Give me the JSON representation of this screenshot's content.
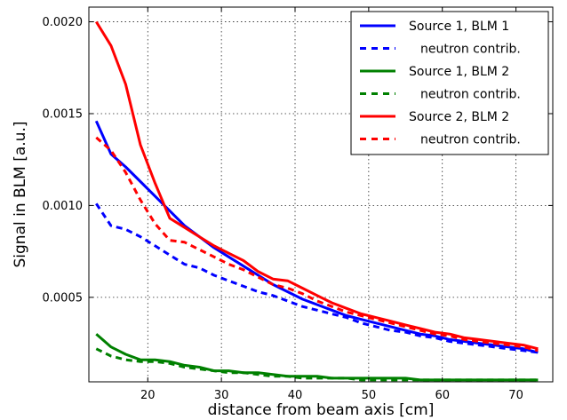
{
  "chart_data": {
    "type": "line",
    "title": "",
    "xlabel": "distance from beam axis [cm]",
    "ylabel": "Signal in BLM [a.u.]",
    "xlim": [
      12,
      75
    ],
    "ylim": [
      4e-05,
      0.00208
    ],
    "xticks": [
      {
        "value": 20,
        "label": "20"
      },
      {
        "value": 30,
        "label": "30"
      },
      {
        "value": 40,
        "label": "40"
      },
      {
        "value": 50,
        "label": "50"
      },
      {
        "value": 60,
        "label": "60"
      },
      {
        "value": 70,
        "label": "70"
      }
    ],
    "yticks": [
      {
        "value": 0.0005,
        "label": "0.0005"
      },
      {
        "value": 0.001,
        "label": "0.0010"
      },
      {
        "value": 0.0015,
        "label": "0.0015"
      },
      {
        "value": 0.002,
        "label": "0.0020"
      }
    ],
    "grid": true,
    "legend_position": "top-right",
    "series": [
      {
        "name": "Source 1, BLM 1",
        "color": "#0000ff",
        "style": "solid",
        "x": [
          13,
          15,
          17,
          19,
          21,
          23,
          25,
          27,
          29,
          31,
          33,
          35,
          37,
          39,
          41,
          43,
          45,
          47,
          49,
          51,
          53,
          55,
          57,
          59,
          61,
          63,
          65,
          67,
          69,
          71,
          73
        ],
        "y": [
          0.00146,
          0.00128,
          0.00121,
          0.00113,
          0.00105,
          0.00097,
          0.00089,
          0.00083,
          0.00077,
          0.00072,
          0.00067,
          0.00062,
          0.00057,
          0.00053,
          0.00049,
          0.00046,
          0.00043,
          0.0004,
          0.00038,
          0.00036,
          0.00034,
          0.00032,
          0.0003,
          0.00029,
          0.00027,
          0.00026,
          0.00025,
          0.00024,
          0.00023,
          0.00022,
          0.0002
        ]
      },
      {
        "name": "neutron contrib.",
        "color": "#0000ff",
        "style": "dashed",
        "x": [
          13,
          15,
          17,
          19,
          21,
          23,
          25,
          27,
          29,
          31,
          33,
          35,
          37,
          39,
          41,
          43,
          45,
          47,
          49,
          51,
          53,
          55,
          57,
          59,
          61,
          63,
          65,
          67,
          69,
          71,
          73
        ],
        "y": [
          0.00101,
          0.00089,
          0.00087,
          0.00083,
          0.00078,
          0.00073,
          0.00068,
          0.00066,
          0.00062,
          0.00059,
          0.00056,
          0.00053,
          0.00051,
          0.00048,
          0.00045,
          0.00043,
          0.00041,
          0.00039,
          0.00036,
          0.00034,
          0.00032,
          0.00031,
          0.00029,
          0.00028,
          0.00026,
          0.00025,
          0.00024,
          0.00023,
          0.00022,
          0.00021,
          0.0002
        ]
      },
      {
        "name": "Source 1, BLM 2",
        "color": "#008000",
        "style": "solid",
        "x": [
          13,
          15,
          17,
          19,
          21,
          23,
          25,
          27,
          29,
          31,
          33,
          35,
          37,
          39,
          41,
          43,
          45,
          47,
          49,
          51,
          53,
          55,
          57,
          59,
          61,
          63,
          65,
          67,
          69,
          71,
          73
        ],
        "y": [
          0.0003,
          0.00023,
          0.00019,
          0.00016,
          0.00016,
          0.00015,
          0.00013,
          0.00012,
          0.0001,
          0.0001,
          9e-05,
          9e-05,
          8e-05,
          7e-05,
          7e-05,
          7e-05,
          6e-05,
          6e-05,
          6e-05,
          6e-05,
          6e-05,
          6e-05,
          5e-05,
          5e-05,
          5e-05,
          5e-05,
          5e-05,
          5e-05,
          5e-05,
          5e-05,
          5e-05
        ]
      },
      {
        "name": "neutron contrib.",
        "color": "#008000",
        "style": "dashed",
        "x": [
          13,
          15,
          17,
          19,
          21,
          23,
          25,
          27,
          29,
          31,
          33,
          35,
          37,
          39,
          41,
          43,
          45,
          47,
          49,
          51,
          53,
          55,
          57,
          59,
          61,
          63,
          65,
          67,
          69,
          71,
          73
        ],
        "y": [
          0.00022,
          0.00018,
          0.00016,
          0.00015,
          0.00015,
          0.00014,
          0.00012,
          0.00011,
          0.0001,
          9e-05,
          9e-05,
          8e-05,
          7e-05,
          7e-05,
          6e-05,
          6e-05,
          6e-05,
          6e-05,
          5e-05,
          5e-05,
          5e-05,
          5e-05,
          5e-05,
          5e-05,
          5e-05,
          5e-05,
          5e-05,
          5e-05,
          5e-05,
          5e-05,
          5e-05
        ]
      },
      {
        "name": "Source 2, BLM 2",
        "color": "#ff0000",
        "style": "solid",
        "x": [
          13,
          15,
          17,
          19,
          21,
          23,
          25,
          27,
          29,
          31,
          33,
          35,
          37,
          39,
          41,
          43,
          45,
          47,
          49,
          51,
          53,
          55,
          57,
          59,
          61,
          63,
          65,
          67,
          69,
          71,
          73
        ],
        "y": [
          0.002,
          0.00187,
          0.00166,
          0.00133,
          0.00112,
          0.00093,
          0.00088,
          0.00083,
          0.00078,
          0.00074,
          0.0007,
          0.00064,
          0.0006,
          0.00059,
          0.00055,
          0.00051,
          0.00047,
          0.00044,
          0.00041,
          0.00039,
          0.00037,
          0.00035,
          0.00033,
          0.00031,
          0.0003,
          0.00028,
          0.00027,
          0.00026,
          0.00025,
          0.00024,
          0.00022
        ]
      },
      {
        "name": "neutron contrib.",
        "color": "#ff0000",
        "style": "dashed",
        "x": [
          13,
          15,
          17,
          19,
          21,
          23,
          25,
          27,
          29,
          31,
          33,
          35,
          37,
          39,
          41,
          43,
          45,
          47,
          49,
          51,
          53,
          55,
          57,
          59,
          61,
          63,
          65,
          67,
          69,
          71,
          73
        ],
        "y": [
          0.00137,
          0.0013,
          0.00118,
          0.00103,
          0.0009,
          0.00081,
          0.0008,
          0.00076,
          0.00072,
          0.00068,
          0.00065,
          0.00061,
          0.00057,
          0.00055,
          0.00052,
          0.00048,
          0.00045,
          0.00042,
          0.0004,
          0.00038,
          0.00036,
          0.00034,
          0.00032,
          0.0003,
          0.00029,
          0.00027,
          0.00026,
          0.00025,
          0.00024,
          0.00023,
          0.00021
        ]
      }
    ]
  }
}
